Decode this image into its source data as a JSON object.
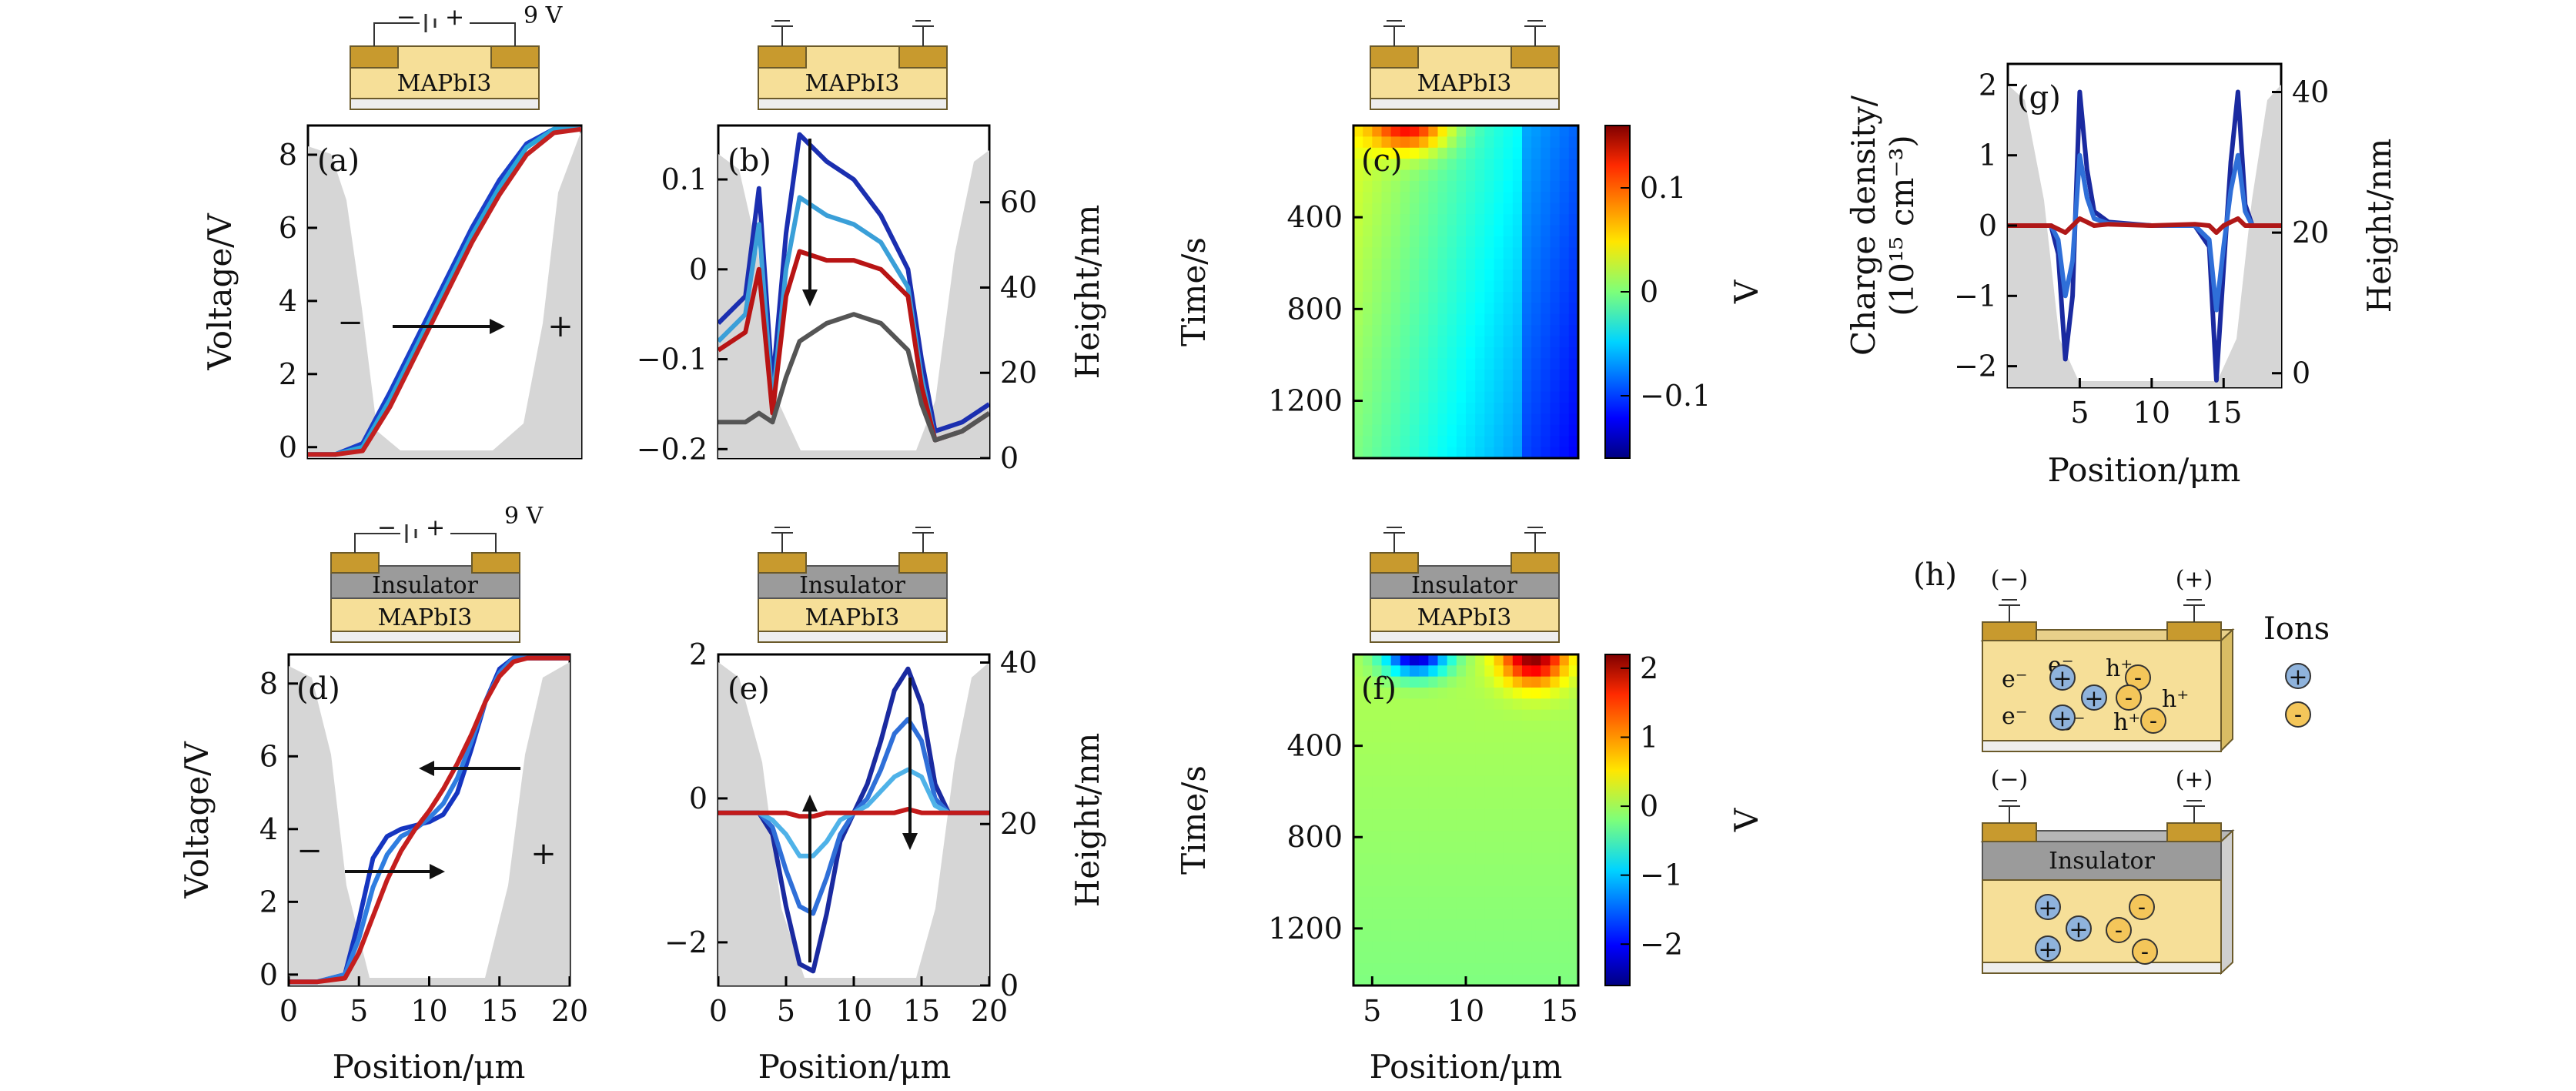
{
  "chart_data": [
    {
      "id": "a",
      "type": "line",
      "panel_label": "(a)",
      "device": "MAPbI3",
      "bias_label": "9 V",
      "bias_symbols": [
        "−",
        "+"
      ],
      "xlabel": "",
      "ylabel": "Voltage/V",
      "xlim": [
        0,
        20
      ],
      "ylim": [
        -0.3,
        8.8
      ],
      "yticks": [
        "0",
        "2",
        "4",
        "6",
        "8"
      ],
      "yticks_val": [
        0,
        2,
        4,
        6,
        8
      ],
      "annotations": [
        "−",
        "+"
      ],
      "x": [
        0,
        2,
        4,
        6,
        8,
        10,
        12,
        14,
        16,
        18,
        20
      ],
      "series": [
        {
          "values": [
            -0.2,
            -0.2,
            0.1,
            1.5,
            3.0,
            4.5,
            6.0,
            7.3,
            8.3,
            8.7,
            8.7
          ]
        },
        {
          "values": [
            -0.2,
            -0.2,
            0.0,
            1.3,
            2.8,
            4.3,
            5.8,
            7.1,
            8.2,
            8.7,
            8.7
          ]
        },
        {
          "values": [
            -0.2,
            -0.2,
            -0.1,
            1.1,
            2.6,
            4.1,
            5.6,
            6.9,
            8.0,
            8.6,
            8.7
          ]
        }
      ]
    },
    {
      "id": "b",
      "type": "line",
      "panel_label": "(b)",
      "device": "MAPbI3",
      "xlabel": "",
      "ylabel": "",
      "y2label": "Height/nm",
      "xlim": [
        0,
        20
      ],
      "ylim": [
        -0.21,
        0.16
      ],
      "yticks": [
        "−0.2",
        "−0.1",
        "0",
        "0.1"
      ],
      "yticks_val": [
        -0.2,
        -0.1,
        0,
        0.1
      ],
      "y2ticks": [
        "0",
        "20",
        "40",
        "60"
      ],
      "y2ticks_val": [
        0,
        20,
        40,
        60
      ],
      "x": [
        0,
        2,
        3,
        4,
        5,
        6,
        8,
        10,
        12,
        14,
        15,
        16,
        18,
        20
      ],
      "series": [
        {
          "values": [
            -0.06,
            -0.03,
            0.09,
            -0.13,
            0.04,
            0.15,
            0.12,
            0.1,
            0.06,
            0.0,
            -0.1,
            -0.18,
            -0.17,
            -0.15
          ]
        },
        {
          "values": [
            -0.08,
            -0.05,
            0.05,
            -0.15,
            0.0,
            0.08,
            0.06,
            0.05,
            0.03,
            -0.02,
            -0.12,
            -0.19,
            -0.18,
            -0.16
          ]
        },
        {
          "values": [
            -0.09,
            -0.07,
            0.0,
            -0.16,
            -0.03,
            0.02,
            0.01,
            0.01,
            0.0,
            -0.03,
            -0.13,
            -0.19,
            -0.18,
            -0.16
          ]
        },
        {
          "values": [
            -0.17,
            -0.17,
            -0.16,
            -0.17,
            -0.12,
            -0.08,
            -0.06,
            -0.05,
            -0.06,
            -0.09,
            -0.15,
            -0.19,
            -0.18,
            -0.16
          ]
        }
      ]
    },
    {
      "id": "c",
      "type": "heatmap",
      "panel_label": "(c)",
      "device": "MAPbI3",
      "xlabel": "",
      "ylabel": "Time/s",
      "colorbar_label": "V",
      "xlim": [
        4,
        16
      ],
      "ylim": [
        0,
        1450
      ],
      "yticks": [
        "400",
        "800",
        "1200"
      ],
      "yticks_val": [
        400,
        800,
        1200
      ],
      "cbar_ticks": [
        "0.1",
        "0",
        "−0.1"
      ],
      "cbar_vals": [
        0.1,
        0,
        -0.1
      ],
      "cbar_range": [
        -0.16,
        0.16
      ]
    },
    {
      "id": "d",
      "type": "line",
      "panel_label": "(d)",
      "device": "MAPbI3",
      "insulator": "Insulator",
      "bias_label": "9 V",
      "bias_symbols": [
        "−",
        "+"
      ],
      "xlabel": "Position/μm",
      "ylabel": "Voltage/V",
      "xlim": [
        0,
        20
      ],
      "ylim": [
        -0.3,
        8.8
      ],
      "xticks": [
        "0",
        "5",
        "10",
        "15",
        "20"
      ],
      "xticks_val": [
        0,
        5,
        10,
        15,
        20
      ],
      "yticks": [
        "0",
        "2",
        "4",
        "6",
        "8"
      ],
      "yticks_val": [
        0,
        2,
        4,
        6,
        8
      ],
      "annotations": [
        "−",
        "+"
      ],
      "x": [
        0,
        2,
        4,
        5,
        6,
        7,
        8,
        9,
        10,
        11,
        12,
        13,
        14,
        15,
        16,
        17,
        18,
        20
      ],
      "series": [
        {
          "values": [
            -0.2,
            -0.2,
            0.0,
            1.5,
            3.2,
            3.8,
            4.0,
            4.1,
            4.2,
            4.4,
            5.0,
            6.2,
            7.5,
            8.4,
            8.7,
            8.7,
            8.7,
            8.7
          ]
        },
        {
          "values": [
            -0.2,
            -0.2,
            0.0,
            1.0,
            2.4,
            3.3,
            3.8,
            4.0,
            4.3,
            4.7,
            5.4,
            6.4,
            7.5,
            8.3,
            8.7,
            8.7,
            8.7,
            8.7
          ]
        },
        {
          "values": [
            -0.2,
            -0.2,
            -0.1,
            0.6,
            1.6,
            2.6,
            3.4,
            4.0,
            4.5,
            5.1,
            5.8,
            6.6,
            7.5,
            8.2,
            8.6,
            8.7,
            8.7,
            8.7
          ]
        }
      ]
    },
    {
      "id": "e",
      "type": "line",
      "panel_label": "(e)",
      "device": "MAPbI3",
      "insulator": "Insulator",
      "xlabel": "Position/μm",
      "ylabel": "",
      "y2label": "Height/nm",
      "xlim": [
        0,
        20
      ],
      "ylim": [
        -2.6,
        2.0
      ],
      "xticks": [
        "0",
        "5",
        "10",
        "15",
        "20"
      ],
      "xticks_val": [
        0,
        5,
        10,
        15,
        20
      ],
      "yticks": [
        "−2",
        "0",
        "2"
      ],
      "yticks_val": [
        -2,
        0,
        2
      ],
      "y2ticks": [
        "0",
        "20",
        "40"
      ],
      "y2ticks_val": [
        0,
        20,
        40
      ],
      "x": [
        0,
        3,
        4,
        5,
        6,
        7,
        8,
        9,
        10,
        11,
        12,
        13,
        14,
        15,
        16,
        17,
        20
      ],
      "series": [
        {
          "values": [
            -0.2,
            -0.2,
            -0.5,
            -1.5,
            -2.3,
            -2.4,
            -1.6,
            -0.6,
            -0.2,
            0.2,
            0.8,
            1.5,
            1.8,
            1.3,
            0.2,
            -0.2,
            -0.2
          ]
        },
        {
          "values": [
            -0.2,
            -0.2,
            -0.4,
            -1.0,
            -1.5,
            -1.6,
            -1.1,
            -0.5,
            -0.2,
            0.0,
            0.4,
            0.9,
            1.1,
            0.8,
            0.0,
            -0.2,
            -0.2
          ]
        },
        {
          "values": [
            -0.2,
            -0.2,
            -0.3,
            -0.5,
            -0.8,
            -0.8,
            -0.6,
            -0.3,
            -0.2,
            -0.1,
            0.1,
            0.3,
            0.4,
            0.3,
            -0.1,
            -0.2,
            -0.2
          ]
        },
        {
          "values": [
            -0.2,
            -0.2,
            -0.2,
            -0.2,
            -0.25,
            -0.25,
            -0.2,
            -0.2,
            -0.2,
            -0.2,
            -0.2,
            -0.2,
            -0.15,
            -0.2,
            -0.2,
            -0.2,
            -0.2
          ]
        }
      ]
    },
    {
      "id": "f",
      "type": "heatmap",
      "panel_label": "(f)",
      "device": "MAPbI3",
      "insulator": "Insulator",
      "xlabel": "Position/μm",
      "ylabel": "Time/s",
      "colorbar_label": "V",
      "xlim": [
        4,
        16
      ],
      "ylim": [
        0,
        1450
      ],
      "xticks": [
        "5",
        "10",
        "15"
      ],
      "xticks_val": [
        5,
        10,
        15
      ],
      "yticks": [
        "400",
        "800",
        "1200"
      ],
      "yticks_val": [
        400,
        800,
        1200
      ],
      "cbar_ticks": [
        "2",
        "1",
        "0",
        "−1",
        "−2"
      ],
      "cbar_vals": [
        2,
        1,
        0,
        -1,
        -2
      ],
      "cbar_range": [
        -2.6,
        2.2
      ]
    },
    {
      "id": "g",
      "type": "line",
      "panel_label": "(g)",
      "xlabel": "Position/μm",
      "ylabel_line1": "Charge density/",
      "ylabel_line2": "(10¹⁵ cm⁻³)",
      "y2label": "Height/nm",
      "xlim": [
        0,
        19
      ],
      "ylim": [
        -2.3,
        2.3
      ],
      "xticks": [
        "5",
        "10",
        "15"
      ],
      "xticks_val": [
        5,
        10,
        15
      ],
      "yticks": [
        "−2",
        "−1",
        "0",
        "1",
        "2"
      ],
      "yticks_val": [
        -2,
        -1,
        0,
        1,
        2
      ],
      "y2ticks": [
        "0",
        "20",
        "40"
      ],
      "y2ticks_val": [
        0,
        20,
        40
      ],
      "x": [
        0,
        3,
        3.5,
        4,
        4.5,
        5,
        5.5,
        6,
        7,
        10,
        13,
        14,
        14.5,
        15,
        15.5,
        16,
        16.5,
        17,
        19
      ],
      "series": [
        {
          "values": [
            0,
            0,
            -0.4,
            -1.9,
            -1.0,
            1.9,
            0.8,
            0.2,
            0.05,
            0,
            0,
            -0.3,
            -2.2,
            -0.6,
            0.9,
            1.9,
            0.3,
            0,
            0
          ]
        },
        {
          "values": [
            0,
            0,
            -0.2,
            -1.0,
            -0.5,
            1.0,
            0.4,
            0.1,
            0.03,
            0,
            0,
            -0.2,
            -1.2,
            -0.3,
            0.5,
            1.0,
            0.2,
            0,
            0
          ]
        },
        {
          "values": [
            0,
            0,
            -0.05,
            -0.1,
            0.0,
            0.1,
            0.05,
            0.0,
            0.02,
            0,
            0.02,
            0.0,
            -0.1,
            0.0,
            0.05,
            0.1,
            0.0,
            0,
            0
          ]
        }
      ]
    }
  ],
  "schematic_h": {
    "panel_label": "(h)",
    "top_electrodes": [
      "(−)",
      "(+)"
    ],
    "bottom_electrodes": [
      "(−)",
      "(+)"
    ],
    "insulator": "Insulator",
    "legend_title": "Ions",
    "carrier_e": "e⁻",
    "carrier_h": "h⁺",
    "ion_pos": "+",
    "ion_neg": "-"
  },
  "colors": {
    "device_gold": "#c89a2e",
    "device_body": "#f6df98",
    "insulator": "#9b9b9b",
    "height_gray": "#d6d6d6",
    "ion_pos": "#8fb3dc",
    "ion_neg": "#f4c65a"
  }
}
